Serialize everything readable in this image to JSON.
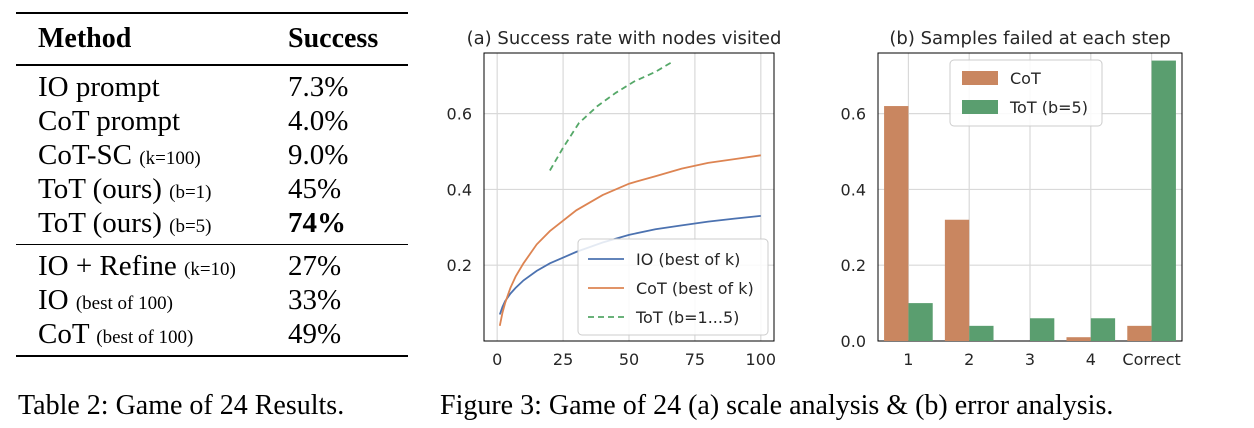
{
  "table": {
    "header": {
      "method": "Method",
      "success": "Success"
    },
    "group1": [
      {
        "method": "IO prompt",
        "param": "",
        "success": "7.3%",
        "bold": false
      },
      {
        "method": "CoT prompt",
        "param": "",
        "success": "4.0%",
        "bold": false
      },
      {
        "method": "CoT-SC",
        "param": "(k=100)",
        "success": "9.0%",
        "bold": false
      },
      {
        "method": "ToT (ours)",
        "param": "(b=1)",
        "success": "45%",
        "bold": false
      },
      {
        "method": "ToT (ours)",
        "param": "(b=5)",
        "success": "74%",
        "bold": true
      }
    ],
    "group2": [
      {
        "method": "IO + Refine",
        "param": "(k=10)",
        "success": "27%",
        "bold": false
      },
      {
        "method": "IO",
        "param": "(best of 100)",
        "success": "33%",
        "bold": false
      },
      {
        "method": "CoT",
        "param": "(best of 100)",
        "success": "49%",
        "bold": false
      }
    ],
    "caption": "Table 2: Game of 24 Results."
  },
  "figure_caption": "Figure 3: Game of 24 (a) scale analysis & (b) error analysis.",
  "chart_data": [
    {
      "type": "line",
      "title": "(a) Success rate with nodes visited",
      "xlabel": "",
      "ylabel": "",
      "xlim": [
        -5,
        105
      ],
      "ylim": [
        0,
        0.76
      ],
      "xticks": [
        0,
        25,
        50,
        75,
        100
      ],
      "yticks": [
        0.2,
        0.4,
        0.6
      ],
      "xtick_labels": [
        "0",
        "25",
        "50",
        "75",
        "100"
      ],
      "ytick_labels": [
        "0.2",
        "0.4",
        "0.6"
      ],
      "grid": true,
      "legend_position": "lower-right",
      "series": [
        {
          "name": "IO (best of k)",
          "color": "#4c72b0",
          "style": "solid",
          "x": [
            1,
            2,
            3,
            5,
            7,
            10,
            15,
            20,
            30,
            40,
            50,
            60,
            70,
            80,
            90,
            100
          ],
          "y": [
            0.07,
            0.09,
            0.105,
            0.125,
            0.14,
            0.16,
            0.185,
            0.205,
            0.235,
            0.26,
            0.28,
            0.295,
            0.305,
            0.315,
            0.323,
            0.33
          ]
        },
        {
          "name": "CoT (best of k)",
          "color": "#dd8452",
          "style": "solid",
          "x": [
            1,
            2,
            3,
            5,
            7,
            10,
            15,
            20,
            30,
            40,
            50,
            60,
            70,
            80,
            90,
            100
          ],
          "y": [
            0.04,
            0.075,
            0.1,
            0.14,
            0.17,
            0.205,
            0.255,
            0.29,
            0.345,
            0.385,
            0.415,
            0.435,
            0.455,
            0.47,
            0.48,
            0.49
          ]
        },
        {
          "name": "ToT (b=1...5)",
          "color": "#55a868",
          "style": "dashed",
          "x": [
            20,
            25,
            31,
            38,
            45,
            52,
            60,
            66
          ],
          "y": [
            0.45,
            0.51,
            0.575,
            0.62,
            0.655,
            0.685,
            0.71,
            0.735
          ]
        }
      ]
    },
    {
      "type": "bar",
      "title": "(b) Samples failed at each step",
      "xlabel": "",
      "ylabel": "",
      "categories": [
        "1",
        "2",
        "3",
        "4",
        "Correct"
      ],
      "ylim": [
        0,
        0.76
      ],
      "yticks": [
        0.0,
        0.2,
        0.4,
        0.6
      ],
      "ytick_labels": [
        "0.0",
        "0.2",
        "0.4",
        "0.6"
      ],
      "grid": true,
      "legend_position": "top-center",
      "series": [
        {
          "name": "CoT",
          "color": "#c98660",
          "values": [
            0.62,
            0.32,
            0.0,
            0.01,
            0.04
          ]
        },
        {
          "name": "ToT (b=5)",
          "color": "#5a9e6f",
          "values": [
            0.1,
            0.04,
            0.06,
            0.06,
            0.74
          ]
        }
      ]
    }
  ]
}
